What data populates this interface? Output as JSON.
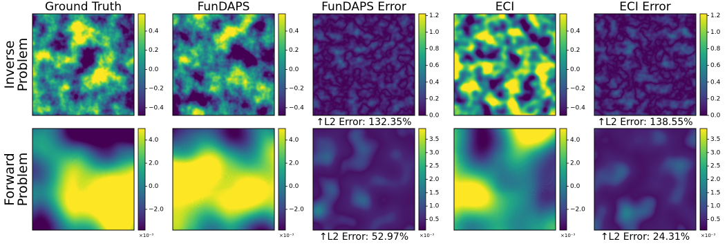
{
  "columns": [
    "Ground Truth",
    "FunDAPS",
    "FunDAPS Error",
    "ECI",
    "ECI Error"
  ],
  "rows": [
    {
      "label": [
        "Inverse",
        "Problem"
      ],
      "panels": [
        {
          "colorbar": {
            "lim": [
              -0.48,
              0.58
            ],
            "ticks": [
              0.4,
              0.2,
              {
                "value": 0,
                "label": "0.0"
              },
              {
                "value": -0.2,
                "label": "−0.2"
              },
              {
                "value": -0.4,
                "label": "−0.4"
              }
            ]
          }
        },
        {
          "colorbar": {
            "lim": [
              -0.48,
              0.58
            ],
            "ticks": [
              0.4,
              0.2,
              {
                "value": 0,
                "label": "0.0"
              },
              {
                "value": -0.2,
                "label": "−0.2"
              },
              {
                "value": -0.4,
                "label": "−0.4"
              }
            ]
          }
        },
        {
          "colorbar": {
            "lim": [
              0,
              1.22
            ],
            "ticks": [
              {
                "value": 0,
                "label": "0.0"
              },
              0.2,
              0.4,
              0.6,
              0.8,
              {
                "value": 1,
                "label": "1.0"
              },
              1.2
            ]
          },
          "error_label": "↑L2 Error: 132.35%"
        },
        {
          "colorbar": {
            "lim": [
              -0.48,
              0.58
            ],
            "ticks": [
              0.4,
              0.2,
              {
                "value": 0,
                "label": "0.0"
              },
              {
                "value": -0.2,
                "label": "−0.2"
              },
              {
                "value": -0.4,
                "label": "−0.4"
              }
            ]
          }
        },
        {
          "colorbar": {
            "lim": [
              0,
              1.22
            ],
            "ticks": [
              {
                "value": 0,
                "label": "0.0"
              },
              0.2,
              0.4,
              0.6,
              0.8,
              {
                "value": 1,
                "label": "1.0"
              },
              1.2
            ]
          },
          "error_label": "↑L2 Error: 138.55%"
        }
      ]
    },
    {
      "label": [
        "Forward",
        "Problem"
      ],
      "panels": [
        {
          "colorbar": {
            "lim": [
              -3.8,
              5.0
            ],
            "ticks": [
              {
                "value": 4,
                "label": "4.0"
              },
              {
                "value": 2,
                "label": "2.0"
              },
              {
                "value": 0,
                "label": "0.0"
              },
              {
                "value": -2,
                "label": "−2.0"
              }
            ],
            "exponent": "×10⁻³"
          }
        },
        {
          "colorbar": {
            "lim": [
              -3.8,
              5.0
            ],
            "ticks": [
              {
                "value": 4,
                "label": "4.0"
              },
              {
                "value": 2,
                "label": "2.0"
              },
              {
                "value": 0,
                "label": "0.0"
              },
              {
                "value": -2,
                "label": "−2.0"
              }
            ],
            "exponent": "×10⁻³"
          }
        },
        {
          "colorbar": {
            "lim": [
              0.1,
              3.9
            ],
            "ticks": [
              3.5,
              {
                "value": 3,
                "label": "3.0"
              },
              2.5,
              {
                "value": 2,
                "label": "2.0"
              },
              1.5,
              {
                "value": 1,
                "label": "1.0"
              },
              0.5
            ],
            "exponent": "×10⁻³"
          },
          "error_label": "↑L2 Error: 52.97%"
        },
        {
          "colorbar": {
            "lim": [
              -3.8,
              5.0
            ],
            "ticks": [
              {
                "value": 4,
                "label": "4.0"
              },
              {
                "value": 2,
                "label": "2.0"
              },
              {
                "value": 0,
                "label": "0.0"
              },
              {
                "value": -2,
                "label": "−2.0"
              }
            ],
            "exponent": "×10⁻³"
          }
        },
        {
          "colorbar": {
            "lim": [
              0.1,
              3.9
            ],
            "ticks": [
              3.5,
              {
                "value": 3,
                "label": "3.0"
              },
              2.5,
              {
                "value": 2,
                "label": "2.0"
              },
              1.5,
              {
                "value": 1,
                "label": "1.0"
              },
              0.5
            ],
            "exponent": "×10⁻³"
          },
          "error_label": "↑L2 Error: 24.31%"
        }
      ]
    }
  ]
}
